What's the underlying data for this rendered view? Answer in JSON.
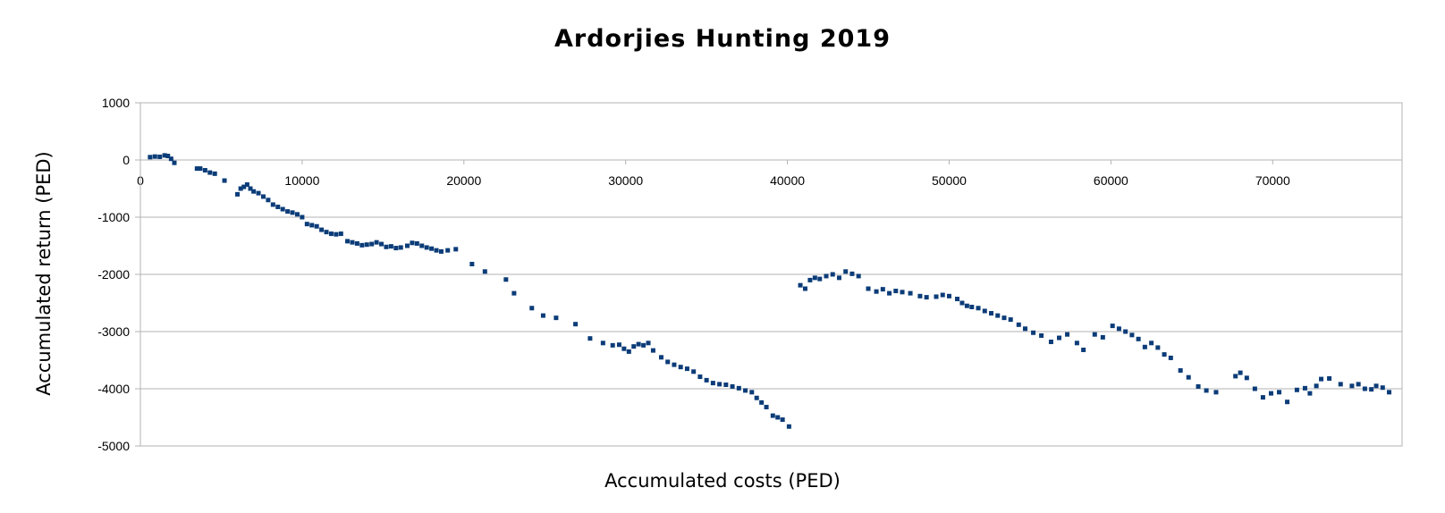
{
  "chart_data": {
    "type": "scatter",
    "title": "Ardorjies Hunting 2019",
    "xlabel": "Accumulated costs (PED)",
    "ylabel": "Accumulated return (PED)",
    "xlim": [
      0,
      78000
    ],
    "ylim": [
      -5000,
      1000
    ],
    "xticks": [
      0,
      10000,
      20000,
      30000,
      40000,
      50000,
      60000,
      70000
    ],
    "yticks": [
      1000,
      0,
      -1000,
      -2000,
      -3000,
      -4000,
      -5000
    ],
    "grid": "horizontal",
    "legend": "none",
    "marker_color": "#0b3c78",
    "points": [
      [
        600,
        50
      ],
      [
        900,
        60
      ],
      [
        1200,
        55
      ],
      [
        1500,
        80
      ],
      [
        1700,
        70
      ],
      [
        1900,
        20
      ],
      [
        2100,
        -50
      ],
      [
        3500,
        -150
      ],
      [
        3700,
        -150
      ],
      [
        4000,
        -180
      ],
      [
        4300,
        -220
      ],
      [
        4600,
        -240
      ],
      [
        5200,
        -360
      ],
      [
        6000,
        -600
      ],
      [
        6200,
        -500
      ],
      [
        6400,
        -470
      ],
      [
        6600,
        -430
      ],
      [
        6800,
        -500
      ],
      [
        7000,
        -550
      ],
      [
        7300,
        -580
      ],
      [
        7600,
        -640
      ],
      [
        7900,
        -700
      ],
      [
        8200,
        -780
      ],
      [
        8500,
        -820
      ],
      [
        8800,
        -860
      ],
      [
        9100,
        -900
      ],
      [
        9400,
        -920
      ],
      [
        9700,
        -950
      ],
      [
        10000,
        -1000
      ],
      [
        10300,
        -1120
      ],
      [
        10600,
        -1140
      ],
      [
        10900,
        -1160
      ],
      [
        11200,
        -1220
      ],
      [
        11500,
        -1260
      ],
      [
        11800,
        -1290
      ],
      [
        12100,
        -1300
      ],
      [
        12400,
        -1290
      ],
      [
        12800,
        -1420
      ],
      [
        13100,
        -1440
      ],
      [
        13400,
        -1460
      ],
      [
        13700,
        -1490
      ],
      [
        14000,
        -1480
      ],
      [
        14300,
        -1470
      ],
      [
        14600,
        -1440
      ],
      [
        14900,
        -1470
      ],
      [
        15200,
        -1520
      ],
      [
        15500,
        -1510
      ],
      [
        15800,
        -1540
      ],
      [
        16100,
        -1530
      ],
      [
        16500,
        -1500
      ],
      [
        16800,
        -1450
      ],
      [
        17100,
        -1460
      ],
      [
        17400,
        -1500
      ],
      [
        17700,
        -1530
      ],
      [
        18000,
        -1550
      ],
      [
        18300,
        -1580
      ],
      [
        18600,
        -1600
      ],
      [
        19000,
        -1580
      ],
      [
        19500,
        -1560
      ],
      [
        20500,
        -1820
      ],
      [
        21300,
        -1950
      ],
      [
        22600,
        -2090
      ],
      [
        23100,
        -2330
      ],
      [
        24200,
        -2590
      ],
      [
        24900,
        -2720
      ],
      [
        25700,
        -2760
      ],
      [
        26900,
        -2870
      ],
      [
        27800,
        -3120
      ],
      [
        28600,
        -3200
      ],
      [
        29200,
        -3240
      ],
      [
        29600,
        -3230
      ],
      [
        29900,
        -3300
      ],
      [
        30200,
        -3350
      ],
      [
        30500,
        -3260
      ],
      [
        30800,
        -3220
      ],
      [
        31100,
        -3240
      ],
      [
        31400,
        -3200
      ],
      [
        31700,
        -3330
      ],
      [
        32200,
        -3450
      ],
      [
        32600,
        -3530
      ],
      [
        33000,
        -3580
      ],
      [
        33400,
        -3620
      ],
      [
        33800,
        -3650
      ],
      [
        34200,
        -3700
      ],
      [
        34600,
        -3790
      ],
      [
        35000,
        -3850
      ],
      [
        35400,
        -3900
      ],
      [
        35800,
        -3920
      ],
      [
        36200,
        -3930
      ],
      [
        36600,
        -3960
      ],
      [
        37000,
        -3990
      ],
      [
        37400,
        -4030
      ],
      [
        37800,
        -4060
      ],
      [
        38100,
        -4160
      ],
      [
        38400,
        -4240
      ],
      [
        38700,
        -4320
      ],
      [
        39100,
        -4470
      ],
      [
        39400,
        -4500
      ],
      [
        39700,
        -4540
      ],
      [
        40100,
        -4660
      ],
      [
        40800,
        -2190
      ],
      [
        41100,
        -2250
      ],
      [
        41400,
        -2100
      ],
      [
        41700,
        -2060
      ],
      [
        42000,
        -2080
      ],
      [
        42400,
        -2030
      ],
      [
        42800,
        -2000
      ],
      [
        43200,
        -2060
      ],
      [
        43600,
        -1950
      ],
      [
        44000,
        -1990
      ],
      [
        44400,
        -2030
      ],
      [
        45000,
        -2250
      ],
      [
        45500,
        -2300
      ],
      [
        45900,
        -2260
      ],
      [
        46300,
        -2330
      ],
      [
        46700,
        -2290
      ],
      [
        47100,
        -2310
      ],
      [
        47600,
        -2330
      ],
      [
        48200,
        -2380
      ],
      [
        48600,
        -2400
      ],
      [
        49200,
        -2390
      ],
      [
        49600,
        -2360
      ],
      [
        50000,
        -2380
      ],
      [
        50500,
        -2430
      ],
      [
        50800,
        -2500
      ],
      [
        51100,
        -2550
      ],
      [
        51400,
        -2570
      ],
      [
        51800,
        -2590
      ],
      [
        52200,
        -2640
      ],
      [
        52600,
        -2680
      ],
      [
        53000,
        -2720
      ],
      [
        53400,
        -2760
      ],
      [
        53800,
        -2790
      ],
      [
        54300,
        -2880
      ],
      [
        54700,
        -2950
      ],
      [
        55200,
        -3020
      ],
      [
        55700,
        -3070
      ],
      [
        56300,
        -3180
      ],
      [
        56800,
        -3110
      ],
      [
        57300,
        -3050
      ],
      [
        57900,
        -3200
      ],
      [
        58300,
        -3320
      ],
      [
        59000,
        -3050
      ],
      [
        59500,
        -3100
      ],
      [
        60100,
        -2900
      ],
      [
        60500,
        -2950
      ],
      [
        60900,
        -3000
      ],
      [
        61300,
        -3060
      ],
      [
        61700,
        -3130
      ],
      [
        62100,
        -3270
      ],
      [
        62500,
        -3200
      ],
      [
        62900,
        -3280
      ],
      [
        63300,
        -3400
      ],
      [
        63700,
        -3460
      ],
      [
        64300,
        -3680
      ],
      [
        64800,
        -3800
      ],
      [
        65400,
        -3960
      ],
      [
        65900,
        -4030
      ],
      [
        66500,
        -4060
      ],
      [
        67700,
        -3780
      ],
      [
        68000,
        -3720
      ],
      [
        68400,
        -3810
      ],
      [
        68900,
        -4000
      ],
      [
        69400,
        -4150
      ],
      [
        69900,
        -4080
      ],
      [
        70400,
        -4060
      ],
      [
        70900,
        -4230
      ],
      [
        71500,
        -4020
      ],
      [
        72000,
        -3990
      ],
      [
        72300,
        -4080
      ],
      [
        72700,
        -3950
      ],
      [
        73000,
        -3830
      ],
      [
        73500,
        -3820
      ],
      [
        74200,
        -3920
      ],
      [
        74900,
        -3950
      ],
      [
        75300,
        -3920
      ],
      [
        75700,
        -4000
      ],
      [
        76100,
        -4010
      ],
      [
        76400,
        -3950
      ],
      [
        76800,
        -3980
      ],
      [
        77200,
        -4060
      ]
    ]
  }
}
